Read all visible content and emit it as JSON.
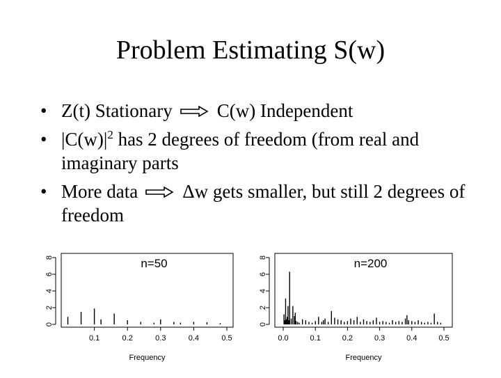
{
  "slide": {
    "title": "Problem Estimating S(w)",
    "bullets": [
      {
        "a": "Z(t)  Stationary",
        "b": "C(w)  Independent"
      },
      {
        "a": "|C(w)|",
        "sup": "2",
        "b": " has 2 degrees of freedom (from real and imaginary parts"
      },
      {
        "a": "More data",
        "b": "Δw gets smaller, but still 2 degrees of freedom"
      }
    ],
    "bullet_symbol": "•",
    "arrow_icon": "double-right-arrow"
  },
  "chart_data": [
    {
      "type": "bar",
      "title": "n=50",
      "xlabel": "Frequency",
      "ylabel": "",
      "xticks": [
        "0.1",
        "0.2",
        "0.3",
        "0.4",
        "0.5"
      ],
      "yticks": [
        "0",
        "2",
        "4",
        "6",
        "8"
      ],
      "xlim": [
        0,
        0.5
      ],
      "ylim": [
        0,
        8
      ],
      "x": [
        0.02,
        0.06,
        0.1,
        0.12,
        0.16,
        0.2,
        0.24,
        0.28,
        0.3,
        0.34,
        0.36,
        0.4,
        0.44,
        0.48
      ],
      "values": [
        0.9,
        1.5,
        1.9,
        0.6,
        1.3,
        0.5,
        0.3,
        0.2,
        0.6,
        0.3,
        0.2,
        0.3,
        0.25,
        0.15
      ]
    },
    {
      "type": "bar",
      "title": "n=200",
      "xlabel": "Frequency",
      "ylabel": "",
      "xticks": [
        "0.0",
        "0.1",
        "0.2",
        "0.3",
        "0.4",
        "0.5"
      ],
      "yticks": [
        "0",
        "2",
        "4",
        "6",
        "8"
      ],
      "xlim": [
        0,
        0.5
      ],
      "ylim": [
        0,
        8
      ],
      "x": [
        0.0025,
        0.005,
        0.0075,
        0.01,
        0.0125,
        0.015,
        0.0175,
        0.02,
        0.025,
        0.03,
        0.035,
        0.0375,
        0.04,
        0.045,
        0.05,
        0.06,
        0.07,
        0.08,
        0.09,
        0.1,
        0.11,
        0.12,
        0.125,
        0.13,
        0.14,
        0.15,
        0.16,
        0.17,
        0.18,
        0.19,
        0.2,
        0.21,
        0.22,
        0.23,
        0.24,
        0.25,
        0.26,
        0.27,
        0.28,
        0.29,
        0.3,
        0.31,
        0.32,
        0.33,
        0.34,
        0.35,
        0.36,
        0.37,
        0.38,
        0.385,
        0.39,
        0.4,
        0.41,
        0.42,
        0.43,
        0.44,
        0.45,
        0.46,
        0.47,
        0.48,
        0.49
      ],
      "values": [
        1.2,
        0.5,
        3.1,
        0.6,
        0.9,
        2.2,
        0.5,
        6.3,
        0.7,
        2.2,
        1.0,
        1.4,
        0.4,
        0.3,
        0.2,
        0.6,
        0.5,
        0.3,
        0.2,
        0.4,
        0.9,
        0.3,
        0.5,
        0.7,
        0.3,
        1.6,
        0.8,
        0.6,
        0.5,
        0.3,
        0.4,
        0.7,
        0.5,
        0.9,
        0.3,
        0.6,
        0.4,
        0.3,
        0.5,
        0.8,
        0.3,
        0.4,
        0.3,
        0.2,
        0.5,
        0.3,
        0.4,
        0.3,
        0.7,
        1.1,
        0.5,
        0.4,
        0.3,
        0.5,
        0.3,
        0.2,
        0.3,
        0.2,
        1.3,
        0.3,
        0.2
      ]
    }
  ]
}
